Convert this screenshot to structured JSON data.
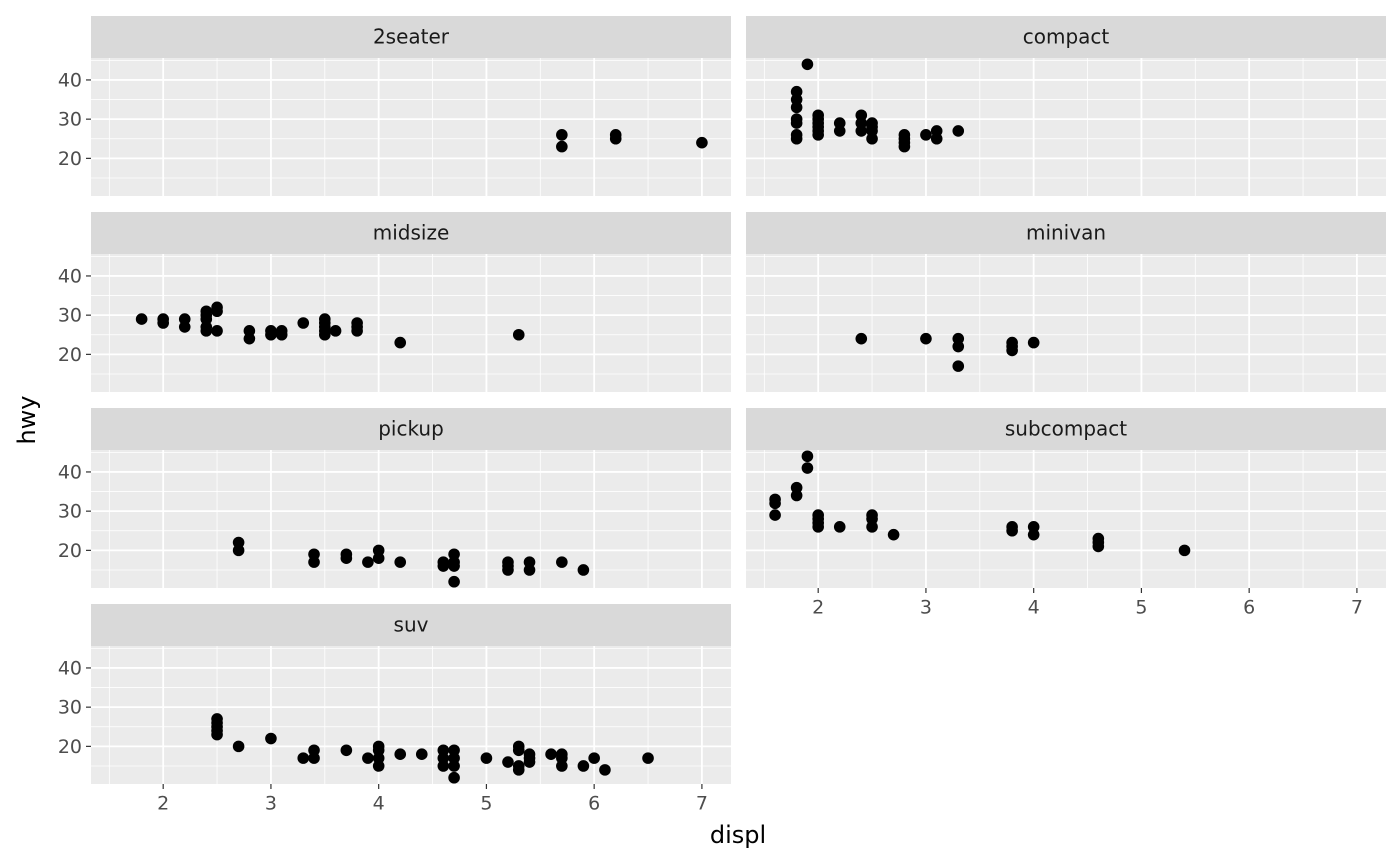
{
  "chart_data": {
    "type": "scatter",
    "x_label": "displ",
    "y_label": "hwy",
    "color": "#000000",
    "xlim": [
      1.33,
      7.27
    ],
    "ylim": [
      10.4,
      45.6
    ],
    "xticks": [
      2,
      3,
      4,
      5,
      6,
      7
    ],
    "yticks": [
      20,
      30,
      40
    ],
    "xminor": [
      1.5,
      2.5,
      3.5,
      4.5,
      5.5,
      6.5
    ],
    "yminor": [
      15,
      25,
      35,
      45
    ],
    "grid": true,
    "panels": [
      {
        "title": "2seater",
        "x": [
          5.7,
          5.7,
          6.2,
          6.2,
          7.0
        ],
        "y": [
          26,
          23,
          26,
          25,
          24
        ]
      },
      {
        "title": "compact",
        "x": [
          1.8,
          1.8,
          1.8,
          1.8,
          1.8,
          1.8,
          1.8,
          1.9,
          2.0,
          2.0,
          2.0,
          2.0,
          2.0,
          2.0,
          2.2,
          2.2,
          2.4,
          2.4,
          2.4,
          2.5,
          2.5,
          2.5,
          2.5,
          2.8,
          2.8,
          2.8,
          2.8,
          3.0,
          3.1,
          3.1,
          3.3
        ],
        "y": [
          37,
          35,
          33,
          30,
          29,
          26,
          25,
          44,
          31,
          30,
          29,
          28,
          27,
          26,
          29,
          27,
          31,
          29,
          27,
          29,
          28,
          27,
          25,
          26,
          25,
          24,
          23,
          26,
          27,
          25,
          27
        ]
      },
      {
        "title": "midsize",
        "x": [
          1.8,
          2.0,
          2.0,
          2.2,
          2.2,
          2.4,
          2.4,
          2.4,
          2.4,
          2.4,
          2.5,
          2.5,
          2.5,
          2.8,
          2.8,
          3.0,
          3.0,
          3.1,
          3.1,
          3.3,
          3.5,
          3.5,
          3.5,
          3.5,
          3.5,
          3.6,
          3.8,
          3.8,
          3.8,
          4.2,
          5.3
        ],
        "y": [
          29,
          29,
          28,
          29,
          27,
          31,
          30,
          29,
          27,
          26,
          32,
          31,
          26,
          26,
          24,
          26,
          25,
          26,
          25,
          28,
          29,
          28,
          27,
          26,
          25,
          26,
          28,
          27,
          26,
          23,
          25
        ]
      },
      {
        "title": "minivan",
        "x": [
          2.4,
          3.0,
          3.3,
          3.3,
          3.3,
          3.8,
          3.8,
          3.8,
          4.0
        ],
        "y": [
          24,
          24,
          24,
          22,
          17,
          23,
          22,
          21,
          23
        ]
      },
      {
        "title": "pickup",
        "x": [
          2.7,
          2.7,
          3.4,
          3.4,
          3.7,
          3.7,
          3.9,
          4.0,
          4.0,
          4.2,
          4.6,
          4.6,
          4.7,
          4.7,
          4.7,
          4.7,
          5.2,
          5.2,
          5.2,
          5.4,
          5.4,
          5.7,
          5.9
        ],
        "y": [
          22,
          20,
          19,
          17,
          19,
          18,
          17,
          20,
          18,
          17,
          17,
          16,
          19,
          17,
          16,
          12,
          17,
          16,
          15,
          17,
          15,
          17,
          15
        ]
      },
      {
        "title": "subcompact",
        "x": [
          1.6,
          1.6,
          1.6,
          1.8,
          1.8,
          1.9,
          1.9,
          2.0,
          2.0,
          2.0,
          2.0,
          2.2,
          2.5,
          2.5,
          2.5,
          2.7,
          3.8,
          3.8,
          4.0,
          4.0,
          4.6,
          4.6,
          4.6,
          5.4
        ],
        "y": [
          33,
          32,
          29,
          36,
          34,
          44,
          41,
          29,
          28,
          27,
          26,
          26,
          29,
          28,
          26,
          24,
          26,
          25,
          26,
          24,
          23,
          22,
          21,
          20
        ]
      },
      {
        "title": "suv",
        "x": [
          2.5,
          2.5,
          2.5,
          2.5,
          2.5,
          2.7,
          3.0,
          3.3,
          3.4,
          3.4,
          3.7,
          3.9,
          4.0,
          4.0,
          4.0,
          4.0,
          4.2,
          4.4,
          4.6,
          4.6,
          4.6,
          4.7,
          4.7,
          4.7,
          4.7,
          5.0,
          5.2,
          5.3,
          5.3,
          5.3,
          5.3,
          5.4,
          5.4,
          5.4,
          5.6,
          5.7,
          5.7,
          5.7,
          5.9,
          6.0,
          6.1,
          6.5
        ],
        "y": [
          27,
          26,
          25,
          24,
          23,
          20,
          22,
          17,
          19,
          17,
          19,
          17,
          20,
          19,
          17,
          15,
          18,
          18,
          19,
          17,
          15,
          19,
          17,
          15,
          12,
          17,
          16,
          20,
          19,
          15,
          14,
          18,
          17,
          16,
          18,
          18,
          17,
          15,
          15,
          17,
          14,
          17
        ]
      }
    ]
  }
}
